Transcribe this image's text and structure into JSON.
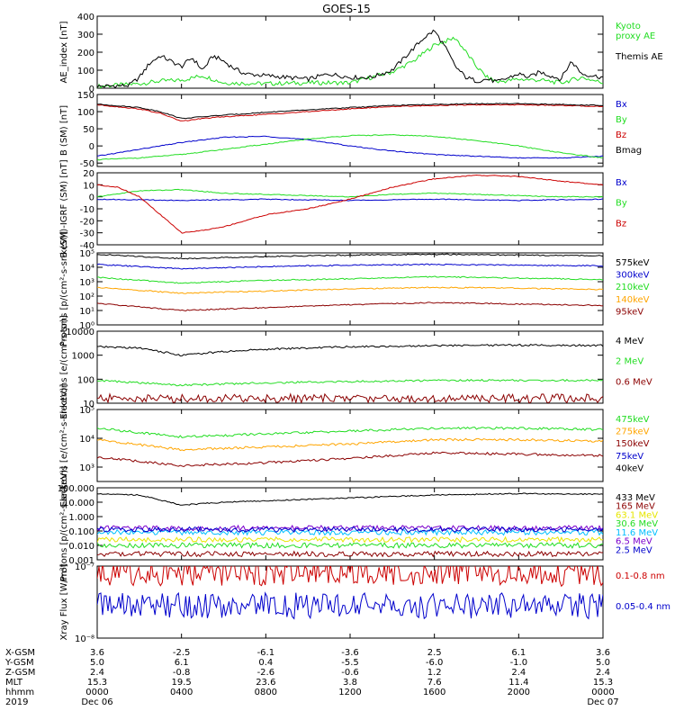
{
  "title": "GOES-15",
  "colors": {
    "black": "#000000",
    "red": "#cc0000",
    "darkred": "#8b0000",
    "green": "#22dd22",
    "blue": "#0000cc",
    "orange": "#ffa500",
    "yellow": "#e6e600",
    "cyan": "#00bfff",
    "purple": "#7b00cc"
  },
  "chart_data": [
    {
      "type": "line",
      "ylabel": "AE_index [nT]",
      "ylim": [
        0,
        400
      ],
      "scale": "linear",
      "ticks": [
        0,
        100,
        200,
        300,
        400
      ],
      "tick_labels": [
        "0",
        "100",
        "200",
        "300",
        "400"
      ],
      "series": [
        {
          "name": "Kyoto proxy AE",
          "color": "#22dd22",
          "label": "Kyoto\nproxy AE",
          "x": [
            0,
            2,
            3,
            4,
            5,
            6,
            8,
            10,
            12,
            14,
            15,
            16,
            17,
            18,
            18.5,
            19,
            20,
            21,
            22,
            23,
            24
          ],
          "y": [
            10,
            25,
            40,
            45,
            70,
            30,
            25,
            30,
            30,
            90,
            150,
            240,
            280,
            120,
            60,
            35,
            50,
            45,
            30,
            60,
            30
          ]
        },
        {
          "name": "Themis AE",
          "color": "#000000",
          "label": "Themis AE",
          "x": [
            0,
            1.5,
            2,
            2.5,
            3,
            3.5,
            4,
            4.5,
            5,
            5.5,
            6,
            6.5,
            7,
            8,
            9,
            10,
            11,
            12,
            13,
            14,
            14.5,
            15,
            15.5,
            16,
            16.5,
            17,
            17.5,
            18,
            18.5,
            19,
            20,
            20.5,
            21,
            22,
            22.5,
            23,
            24
          ],
          "y": [
            10,
            15,
            60,
            140,
            180,
            150,
            120,
            170,
            100,
            180,
            150,
            110,
            80,
            70,
            60,
            50,
            80,
            60,
            60,
            100,
            160,
            220,
            280,
            320,
            230,
            120,
            60,
            40,
            50,
            35,
            80,
            60,
            90,
            50,
            150,
            80,
            60
          ]
        }
      ]
    },
    {
      "type": "line",
      "ylabel": "B (SM) [nT]",
      "ylim": [
        -60,
        150
      ],
      "scale": "linear",
      "ticks": [
        -50,
        0,
        50,
        100,
        150
      ],
      "tick_labels": [
        "-50",
        "0",
        "50",
        "100",
        "150"
      ],
      "series": [
        {
          "name": "Bx",
          "color": "#0000cc",
          "label": "Bx",
          "x": [
            0,
            2,
            4,
            6,
            8,
            10,
            12,
            14,
            16,
            18,
            20,
            22,
            24
          ],
          "y": [
            -30,
            -10,
            10,
            25,
            28,
            18,
            0,
            -15,
            -25,
            -30,
            -35,
            -35,
            -30
          ]
        },
        {
          "name": "By",
          "color": "#22dd22",
          "label": "By",
          "x": [
            0,
            2,
            4,
            6,
            8,
            10,
            12,
            14,
            16,
            18,
            20,
            22,
            24
          ],
          "y": [
            -40,
            -35,
            -25,
            -10,
            5,
            20,
            30,
            32,
            28,
            15,
            0,
            -20,
            -35
          ]
        },
        {
          "name": "Bz",
          "color": "#cc0000",
          "label": "Bz",
          "x": [
            0,
            2,
            3,
            4,
            5,
            6,
            8,
            10,
            12,
            14,
            16,
            18,
            20,
            22,
            24
          ],
          "y": [
            120,
            108,
            95,
            72,
            80,
            85,
            92,
            100,
            108,
            115,
            118,
            120,
            120,
            118,
            115
          ]
        },
        {
          "name": "Bmag",
          "color": "#000000",
          "label": "Bmag",
          "x": [
            0,
            2,
            3,
            4,
            5,
            6,
            8,
            10,
            12,
            14,
            16,
            18,
            20,
            22,
            24
          ],
          "y": [
            122,
            112,
            100,
            80,
            85,
            90,
            98,
            105,
            112,
            118,
            121,
            123,
            123,
            121,
            118
          ]
        }
      ]
    },
    {
      "type": "line",
      "ylabel": "B (SM)-IGRF (SM) [nT]",
      "ylim": [
        -40,
        20
      ],
      "scale": "linear",
      "ticks": [
        -40,
        -30,
        -20,
        -10,
        0,
        10,
        20
      ],
      "tick_labels": [
        "-40",
        "-30",
        "-20",
        "-10",
        "0",
        "10",
        "20"
      ],
      "series": [
        {
          "name": "Bx",
          "color": "#0000cc",
          "label": "Bx",
          "x": [
            0,
            4,
            8,
            12,
            16,
            20,
            24
          ],
          "y": [
            -2,
            -3,
            -2,
            -3,
            -2,
            -3,
            -2
          ]
        },
        {
          "name": "By",
          "color": "#22dd22",
          "label": "By",
          "x": [
            0,
            2,
            4,
            6,
            8,
            10,
            12,
            14,
            16,
            18,
            20,
            22,
            24
          ],
          "y": [
            0,
            5,
            6,
            3,
            2,
            1,
            0,
            2,
            3,
            2,
            1,
            0,
            0
          ]
        },
        {
          "name": "Bz",
          "color": "#cc0000",
          "label": "Bz",
          "x": [
            0,
            1,
            2,
            3,
            4,
            5,
            6,
            8,
            10,
            12,
            14,
            16,
            18,
            20,
            22,
            24
          ],
          "y": [
            10,
            8,
            0,
            -15,
            -30,
            -28,
            -25,
            -15,
            -10,
            -2,
            8,
            15,
            18,
            17,
            13,
            10
          ]
        }
      ]
    },
    {
      "type": "line",
      "ylabel": "Protons [p/(cm²-s-sr-keV)]",
      "ylim": [
        0,
        5
      ],
      "scale": "log10",
      "ticks": [
        0,
        1,
        2,
        3,
        4,
        5
      ],
      "tick_labels": [
        "10⁰",
        "10¹",
        "10²",
        "10³",
        "10⁴",
        "10⁵"
      ],
      "series": [
        {
          "name": "575keV",
          "color": "#000000",
          "label": "575keV",
          "x": [
            0,
            4,
            8,
            12,
            16,
            20,
            24
          ],
          "y": [
            4.9,
            4.6,
            4.75,
            4.85,
            4.9,
            4.85,
            4.8
          ]
        },
        {
          "name": "300keV",
          "color": "#0000cc",
          "label": "300keV",
          "x": [
            0,
            4,
            8,
            12,
            16,
            20,
            24
          ],
          "y": [
            4.2,
            3.9,
            4.05,
            4.15,
            4.2,
            4.15,
            4.1
          ]
        },
        {
          "name": "210keV",
          "color": "#22dd22",
          "label": "210keV",
          "x": [
            0,
            4,
            8,
            12,
            16,
            20,
            24
          ],
          "y": [
            3.3,
            2.9,
            3.1,
            3.2,
            3.35,
            3.25,
            3.15
          ]
        },
        {
          "name": "140keV",
          "color": "#ffa500",
          "label": "140keV",
          "x": [
            0,
            4,
            8,
            12,
            16,
            20,
            24
          ],
          "y": [
            2.6,
            2.2,
            2.35,
            2.5,
            2.6,
            2.55,
            2.45
          ]
        },
        {
          "name": "95keV",
          "color": "#8b0000",
          "label": "95keV",
          "x": [
            0,
            4,
            8,
            12,
            16,
            20,
            24
          ],
          "y": [
            1.5,
            1.0,
            1.2,
            1.4,
            1.55,
            1.45,
            1.35
          ]
        }
      ]
    },
    {
      "type": "line",
      "ylabel": "Electrons [e/(cm²-s-sr)]",
      "ylim": [
        1,
        4
      ],
      "scale": "log10",
      "ticks": [
        1,
        2,
        3,
        4
      ],
      "tick_labels": [
        "10",
        "100",
        "1000",
        "10000"
      ],
      "series": [
        {
          "name": "4 MeV",
          "color": "#000000",
          "label": "4 MeV",
          "x": [
            0,
            2,
            4,
            6,
            8,
            12,
            16,
            20,
            24
          ],
          "y": [
            3.35,
            3.3,
            3.0,
            3.15,
            3.25,
            3.35,
            3.4,
            3.42,
            3.4
          ]
        },
        {
          "name": "2 MeV",
          "color": "#22dd22",
          "label": "2 MeV",
          "x": [
            0,
            4,
            8,
            12,
            16,
            20,
            24
          ],
          "y": [
            1.95,
            1.75,
            1.85,
            1.9,
            1.95,
            1.95,
            1.95
          ]
        },
        {
          "name": "0.6 MeV",
          "color": "#8b0000",
          "label": "0.6 MeV",
          "x": [
            0,
            24
          ],
          "y": [
            1.2,
            1.2
          ]
        }
      ]
    },
    {
      "type": "line",
      "ylabel": "Electrons [e/(cm²-s-sr-keV)]",
      "ylim": [
        2.5,
        5
      ],
      "scale": "log10",
      "ticks": [
        3,
        4,
        5
      ],
      "tick_labels": [
        "10³",
        "10⁴",
        "10⁵"
      ],
      "series": [
        {
          "name": "475keV",
          "color": "#22dd22",
          "label": "475keV",
          "x": [
            0,
            4,
            8,
            12,
            16,
            20,
            24
          ],
          "y": [
            4.35,
            4.05,
            4.15,
            4.25,
            4.35,
            4.35,
            4.3
          ]
        },
        {
          "name": "275keV",
          "color": "#ffa500",
          "label": "275keV",
          "x": [
            0,
            4,
            8,
            12,
            16,
            20,
            24
          ],
          "y": [
            3.95,
            3.6,
            3.7,
            3.8,
            3.95,
            3.95,
            3.9
          ]
        },
        {
          "name": "150keV",
          "color": "#8b0000",
          "label": "150keV",
          "x": [
            0,
            4,
            8,
            12,
            16,
            20,
            24
          ],
          "y": [
            3.35,
            3.05,
            3.15,
            3.3,
            3.5,
            3.45,
            3.4
          ]
        }
      ],
      "legend_extra": [
        {
          "label": "75keV",
          "color": "#0000cc"
        },
        {
          "label": "40keV",
          "color": "#000000"
        }
      ]
    },
    {
      "type": "line",
      "ylabel": "Protons [p/(cm²-s-sr-keV)]",
      "ylim": [
        -3,
        2
      ],
      "scale": "log10",
      "ticks": [
        -3,
        -2,
        -1,
        0,
        1,
        2
      ],
      "tick_labels": [
        "0.001",
        "0.010",
        "0.100",
        "1.000",
        "10.000",
        "100.000"
      ],
      "series": [
        {
          "name": "433 MeV",
          "color": "#000000",
          "label": "433 MeV",
          "x": [
            0,
            2,
            4,
            6,
            8,
            12,
            16,
            20,
            24
          ],
          "y": [
            1.6,
            1.5,
            0.8,
            1.0,
            1.1,
            1.3,
            1.5,
            1.6,
            1.55
          ]
        },
        {
          "name": "165 MeV",
          "color": "#8b0000",
          "label": "165 MeV",
          "x": [
            0,
            24
          ],
          "y": [
            -2.6,
            -2.6
          ]
        },
        {
          "name": "63.1 MeV",
          "color": "#e6e600",
          "label": "63.1 MeV",
          "x": [
            0,
            24
          ],
          "y": [
            -1.6,
            -1.6
          ]
        },
        {
          "name": "30.6 MeV",
          "color": "#22dd22",
          "label": "30.6 MeV",
          "x": [
            0,
            24
          ],
          "y": [
            -2.0,
            -2.0
          ]
        },
        {
          "name": "11.6 MeV",
          "color": "#00bfff",
          "label": "11.6 MeV",
          "x": [
            0,
            24
          ],
          "y": [
            -1.1,
            -1.1
          ]
        },
        {
          "name": "6.5 MeV",
          "color": "#7b00cc",
          "label": "6.5 MeV",
          "x": [
            0,
            24
          ],
          "y": [
            -0.8,
            -0.8
          ]
        },
        {
          "name": "2.5 MeV",
          "color": "#0000cc",
          "label": "2.5 MeV",
          "x": [
            0,
            24
          ],
          "y": [
            -0.9,
            -0.9
          ]
        }
      ]
    },
    {
      "type": "line",
      "ylabel": "Xray Flux [W/m²]",
      "ylim": [
        -8,
        -7
      ],
      "scale": "log10",
      "ticks": [
        -8,
        -7
      ],
      "tick_labels": [
        "10⁻⁸",
        "10⁻⁷"
      ],
      "series": [
        {
          "name": "0.1-0.8 nm",
          "color": "#cc0000",
          "label": "0.1-0.8 nm",
          "x": [
            0,
            24
          ],
          "y": [
            -7.1,
            -7.1
          ]
        },
        {
          "name": "0.05-0.4 nm",
          "color": "#0000cc",
          "label": "0.05-0.4 nm",
          "x": [
            0,
            24
          ],
          "y": [
            -7.55,
            -7.55
          ]
        }
      ]
    }
  ],
  "x_axis": {
    "range": [
      0,
      24
    ],
    "ticks": [
      0,
      4,
      8,
      12,
      16,
      20,
      24
    ],
    "rows": [
      {
        "label": "X-GSM",
        "values": [
          "3.6",
          "-2.5",
          "-6.1",
          "-3.6",
          "2.5",
          "6.1",
          "3.6"
        ]
      },
      {
        "label": "Y-GSM",
        "values": [
          "5.0",
          "6.1",
          "0.4",
          "-5.5",
          "-6.0",
          "-1.0",
          "5.0"
        ]
      },
      {
        "label": "Z-GSM",
        "values": [
          "2.4",
          "-0.8",
          "-2.6",
          "-0.6",
          "1.2",
          "2.4",
          "2.4"
        ]
      },
      {
        "label": "MLT",
        "values": [
          "15.3",
          "19.5",
          "23.6",
          "3.8",
          "7.6",
          "11.4",
          "15.3"
        ]
      },
      {
        "label": "hhmm",
        "values": [
          "0000",
          "0400",
          "0800",
          "1200",
          "1600",
          "2000",
          "0000"
        ]
      },
      {
        "label": "2019",
        "values": [
          "Dec 06",
          "",
          "",
          "",
          "",
          "",
          "Dec 07"
        ]
      }
    ]
  }
}
